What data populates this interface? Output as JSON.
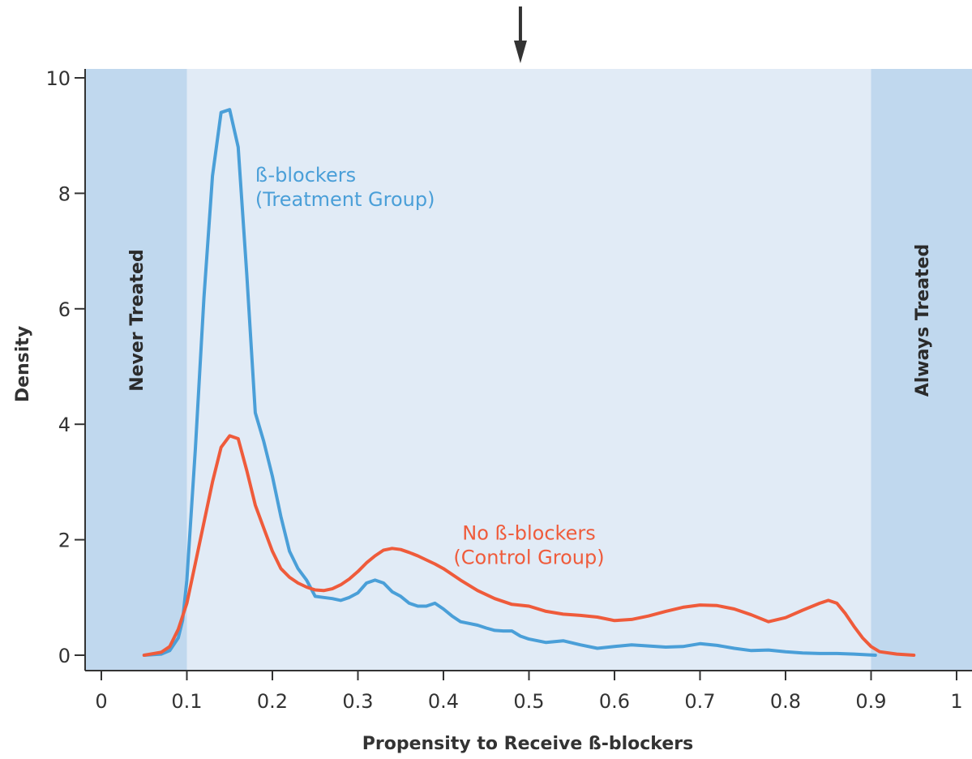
{
  "chart_data": {
    "type": "line",
    "title": "",
    "xlabel": "Propensity to Receive ß-blockers",
    "ylabel": "Density",
    "xlim": [
      0,
      1
    ],
    "ylim": [
      0,
      10
    ],
    "x_ticks": [
      "0",
      "0.1",
      "0.2",
      "0.3",
      "0.4",
      "0.5",
      "0.6",
      "0.7",
      "0.8",
      "0.9",
      "1"
    ],
    "y_ticks": [
      "0",
      "2",
      "4",
      "6",
      "8",
      "10"
    ],
    "grid": false,
    "regions": [
      {
        "label": "Never Treated",
        "x_range": [
          0,
          0.1
        ],
        "color": "#c0d8ee"
      },
      {
        "label": "Always Treated",
        "x_range": [
          0.9,
          1
        ],
        "color": "#c0d8ee"
      }
    ],
    "overlap_region_color": "#e1ebf6",
    "arrow_marker_x": 0.49,
    "series": [
      {
        "name": "ß-blockers\n(Treatment Group)",
        "label_lines": [
          "ß-blockers",
          "(Treatment Group)"
        ],
        "color": "#4a9fd8",
        "x": [
          0.05,
          0.07,
          0.08,
          0.09,
          0.095,
          0.1,
          0.11,
          0.12,
          0.13,
          0.14,
          0.15,
          0.16,
          0.17,
          0.18,
          0.19,
          0.2,
          0.21,
          0.22,
          0.23,
          0.24,
          0.25,
          0.26,
          0.27,
          0.28,
          0.29,
          0.3,
          0.31,
          0.32,
          0.33,
          0.34,
          0.35,
          0.36,
          0.37,
          0.38,
          0.39,
          0.4,
          0.41,
          0.42,
          0.43,
          0.44,
          0.45,
          0.46,
          0.47,
          0.48,
          0.49,
          0.5,
          0.52,
          0.54,
          0.56,
          0.58,
          0.6,
          0.62,
          0.64,
          0.66,
          0.68,
          0.7,
          0.72,
          0.74,
          0.76,
          0.78,
          0.8,
          0.82,
          0.84,
          0.86,
          0.88,
          0.905
        ],
        "y": [
          0.0,
          0.02,
          0.08,
          0.3,
          0.6,
          1.3,
          3.6,
          6.2,
          8.3,
          9.4,
          9.45,
          8.8,
          6.6,
          4.2,
          3.7,
          3.1,
          2.4,
          1.8,
          1.5,
          1.3,
          1.02,
          1.0,
          0.98,
          0.95,
          1.0,
          1.08,
          1.25,
          1.3,
          1.25,
          1.1,
          1.02,
          0.9,
          0.85,
          0.85,
          0.9,
          0.8,
          0.68,
          0.58,
          0.55,
          0.52,
          0.47,
          0.43,
          0.42,
          0.42,
          0.33,
          0.28,
          0.22,
          0.25,
          0.18,
          0.12,
          0.15,
          0.18,
          0.16,
          0.14,
          0.15,
          0.2,
          0.17,
          0.12,
          0.08,
          0.09,
          0.06,
          0.04,
          0.03,
          0.03,
          0.02,
          0.0
        ]
      },
      {
        "name": "No ß-blockers\n(Control Group)",
        "label_lines": [
          "No ß-blockers",
          "(Control Group)"
        ],
        "color": "#ef5b3b",
        "x": [
          0.05,
          0.07,
          0.08,
          0.09,
          0.1,
          0.11,
          0.12,
          0.13,
          0.14,
          0.15,
          0.16,
          0.17,
          0.18,
          0.19,
          0.2,
          0.21,
          0.22,
          0.23,
          0.24,
          0.25,
          0.26,
          0.27,
          0.28,
          0.29,
          0.3,
          0.31,
          0.32,
          0.33,
          0.34,
          0.35,
          0.36,
          0.37,
          0.38,
          0.39,
          0.4,
          0.42,
          0.44,
          0.46,
          0.48,
          0.5,
          0.52,
          0.54,
          0.56,
          0.58,
          0.6,
          0.62,
          0.64,
          0.66,
          0.68,
          0.7,
          0.72,
          0.74,
          0.76,
          0.78,
          0.8,
          0.82,
          0.84,
          0.85,
          0.86,
          0.87,
          0.88,
          0.89,
          0.9,
          0.91,
          0.93,
          0.95
        ],
        "y": [
          0.0,
          0.05,
          0.15,
          0.45,
          0.9,
          1.6,
          2.3,
          3.0,
          3.6,
          3.8,
          3.75,
          3.2,
          2.6,
          2.2,
          1.8,
          1.5,
          1.35,
          1.25,
          1.18,
          1.13,
          1.12,
          1.15,
          1.22,
          1.32,
          1.45,
          1.6,
          1.72,
          1.82,
          1.85,
          1.83,
          1.78,
          1.72,
          1.65,
          1.58,
          1.5,
          1.3,
          1.12,
          0.98,
          0.88,
          0.85,
          0.76,
          0.71,
          0.69,
          0.66,
          0.6,
          0.62,
          0.68,
          0.76,
          0.83,
          0.87,
          0.86,
          0.8,
          0.7,
          0.58,
          0.65,
          0.78,
          0.9,
          0.95,
          0.9,
          0.72,
          0.5,
          0.3,
          0.15,
          0.06,
          0.02,
          0.0
        ]
      }
    ]
  }
}
